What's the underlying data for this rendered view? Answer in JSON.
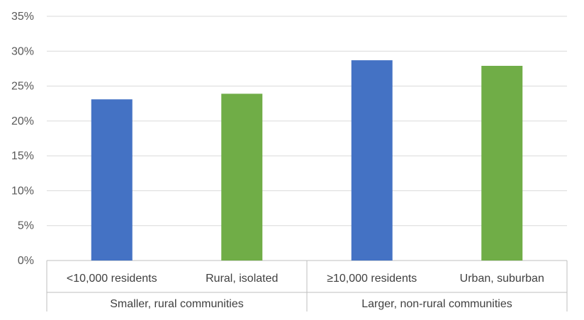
{
  "chart_data": {
    "type": "bar",
    "categories": [
      "<10,000 residents",
      "Rural, isolated",
      "≥10,000 residents",
      "Urban, suburban"
    ],
    "groups": [
      {
        "label": "Smaller, rural communities",
        "categories": [
          "<10,000 residents",
          "Rural, isolated"
        ]
      },
      {
        "label": "Larger, non-rural communities",
        "categories": [
          "≥10,000 residents",
          "Urban, suburban"
        ]
      }
    ],
    "values": [
      23.1,
      23.9,
      28.7,
      27.9
    ],
    "value_format": "percent",
    "ylim": [
      0,
      35
    ],
    "yticks": [
      "0%",
      "5%",
      "10%",
      "15%",
      "20%",
      "25%",
      "30%",
      "35%"
    ],
    "bar_colors": [
      "#4472C4",
      "#70AD47",
      "#4472C4",
      "#70AD47"
    ],
    "grid": true,
    "title": "",
    "xlabel": "",
    "ylabel": ""
  }
}
